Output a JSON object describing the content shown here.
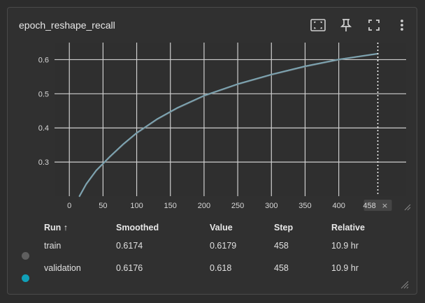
{
  "card": {
    "title": "epoch_reshape_recall",
    "toolbar": [
      "fit-domain-icon",
      "pin-icon",
      "fullscreen-icon",
      "more-vert-icon"
    ]
  },
  "chart_data": {
    "type": "line",
    "xlabel": "",
    "ylabel": "",
    "xlim": [
      -22,
      500
    ],
    "ylim": [
      0.2,
      0.65
    ],
    "x_ticks": [
      0,
      50,
      100,
      150,
      200,
      250,
      300,
      350,
      400
    ],
    "x_tick_labels": [
      "0",
      "50",
      "100",
      "150",
      "200",
      "250",
      "300",
      "350",
      "400"
    ],
    "y_ticks": [
      0.3,
      0.4,
      0.5,
      0.6
    ],
    "y_tick_labels": [
      "0.3",
      "0.4",
      "0.5",
      "0.6"
    ],
    "grid": true,
    "cursor_step": 458,
    "cursor_label": "458",
    "series": [
      {
        "name": "train",
        "color": "#6f7f86",
        "x": [
          15,
          25,
          40,
          60,
          80,
          100,
          130,
          160,
          200,
          250,
          300,
          350,
          400,
          458
        ],
        "y": [
          0.2,
          0.235,
          0.275,
          0.315,
          0.352,
          0.385,
          0.425,
          0.458,
          0.494,
          0.528,
          0.556,
          0.58,
          0.6,
          0.6174
        ]
      },
      {
        "name": "validation",
        "color": "#7ea8b6",
        "x": [
          15,
          25,
          40,
          60,
          80,
          100,
          130,
          160,
          200,
          250,
          300,
          350,
          400,
          458
        ],
        "y": [
          0.2,
          0.236,
          0.276,
          0.316,
          0.353,
          0.386,
          0.426,
          0.459,
          0.495,
          0.529,
          0.557,
          0.581,
          0.601,
          0.6176
        ]
      }
    ]
  },
  "table": {
    "headers": {
      "run": "Run ↑",
      "smoothed": "Smoothed",
      "value": "Value",
      "step": "Step",
      "relative": "Relative"
    },
    "rows": [
      {
        "run": "train",
        "smoothed": "0.6174",
        "value": "0.6179",
        "step": "458",
        "relative": "10.9 hr",
        "color": "#5f5f5f"
      },
      {
        "run": "validation",
        "smoothed": "0.6176",
        "value": "0.618",
        "step": "458",
        "relative": "10.9 hr",
        "color": "#10a0b8"
      }
    ]
  }
}
